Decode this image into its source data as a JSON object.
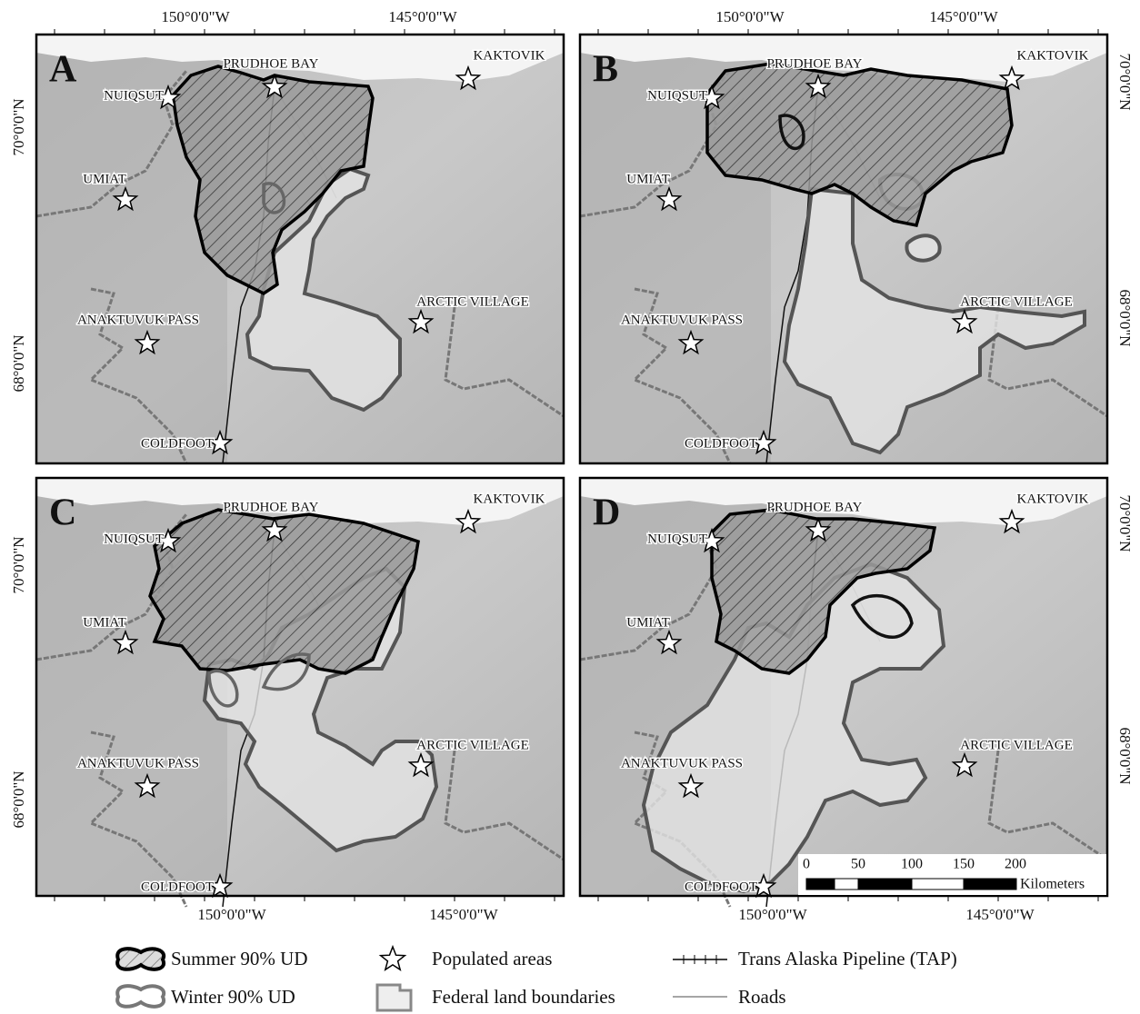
{
  "panels": [
    {
      "label": "A"
    },
    {
      "label": "B"
    },
    {
      "label": "C"
    },
    {
      "label": "D"
    }
  ],
  "places": [
    "NUIQSUT",
    "PRUDHOE BAY",
    "KAKTOVIK",
    "UMIAT",
    "ANAKTUVUK PASS",
    "ARCTIC VILLAGE",
    "COLDFOOT"
  ],
  "longitudes": [
    "150°0'0\"W",
    "145°0'0\"W"
  ],
  "latitudes": [
    "70°0'0\"N",
    "68°0'0\"N"
  ],
  "scale_bar": {
    "ticks": [
      0,
      50,
      100,
      150,
      200
    ],
    "unit": "Kilometers"
  },
  "legend": [
    "Summer 90% UD",
    "Populated areas",
    "Trans Alaska Pipeline (TAP)",
    "Winter 90% UD",
    "Federal land boundaries",
    "Roads"
  ]
}
